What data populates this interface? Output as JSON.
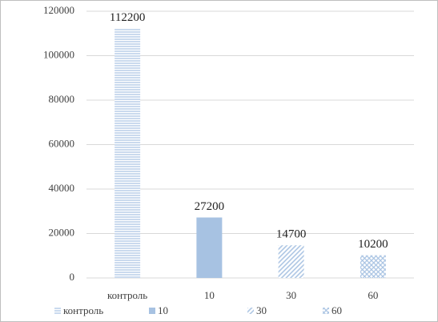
{
  "chart_data": {
    "type": "bar",
    "categories": [
      "контроль",
      "10",
      "30",
      "60"
    ],
    "values": [
      112200,
      27200,
      14700,
      10200
    ],
    "patterns": [
      "horizontal",
      "solid",
      "diagonal",
      "cross"
    ],
    "color": "#a7c2e2",
    "ylim": [
      0,
      120000
    ],
    "yticks": [
      0,
      20000,
      40000,
      60000,
      80000,
      100000,
      120000
    ],
    "grid": true,
    "legend": "bottom"
  }
}
